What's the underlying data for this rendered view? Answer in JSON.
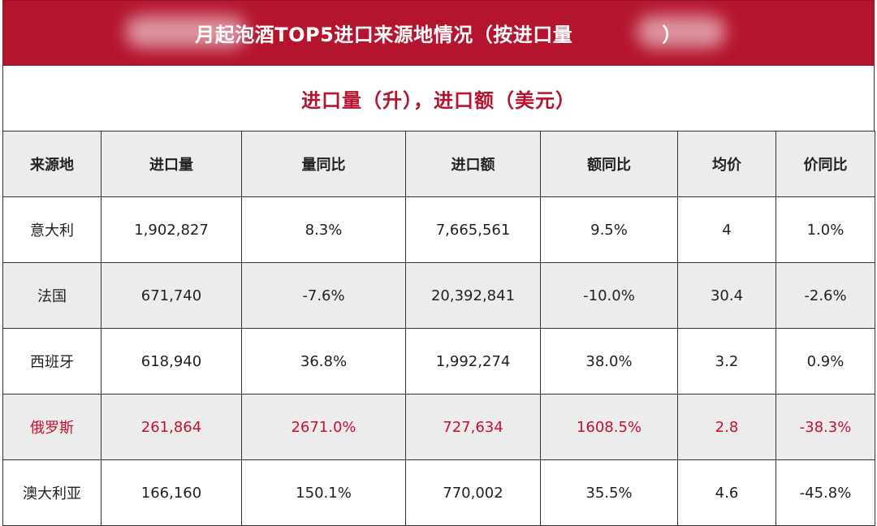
{
  "title": "月起泡酒TOP5进口来源地情况（按进口量",
  "title_suffix": "）",
  "subtitle": "进口量（升），进口额（美元）",
  "colors": {
    "header_bg": "#b5142e",
    "highlight_text": "#c8102e",
    "shade_row": "#ececec"
  },
  "table": {
    "headers": [
      "来源地",
      "进口量",
      "量同比",
      "进口额",
      "额同比",
      "均价",
      "价同比"
    ],
    "rows": [
      [
        "意大利",
        "1,902,827",
        "8.3%",
        "7,665,561",
        "9.5%",
        "4",
        "1.0%"
      ],
      [
        "法国",
        "671,740",
        "-7.6%",
        "20,392,841",
        "-10.0%",
        "30.4",
        "-2.6%"
      ],
      [
        "西班牙",
        "618,940",
        "36.8%",
        "1,992,274",
        "38.0%",
        "3.2",
        "0.9%"
      ],
      [
        "俄罗斯",
        "261,864",
        "2671.0%",
        "727,634",
        "1608.5%",
        "2.8",
        "-38.3%"
      ],
      [
        "澳大利亚",
        "166,160",
        "150.1%",
        "770,002",
        "35.5%",
        "4.6",
        "-45.8%"
      ]
    ]
  }
}
